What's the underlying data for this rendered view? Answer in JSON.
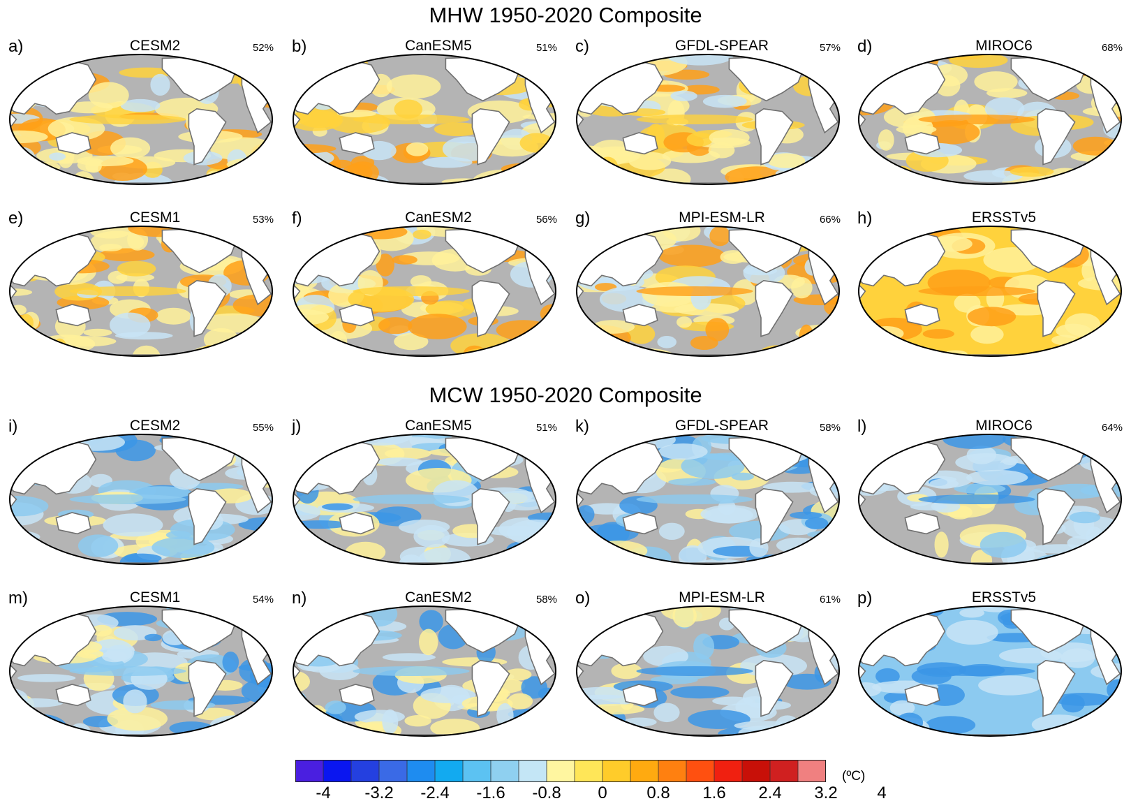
{
  "sections": [
    {
      "title": "MHW 1950-2020 Composite",
      "kind": "mhw"
    },
    {
      "title": "MCW 1950-2020 Composite",
      "kind": "mcw"
    }
  ],
  "panels": [
    {
      "label": "a)",
      "model": "CESM2",
      "pct": "52%",
      "kind": "mhw",
      "strength": 1
    },
    {
      "label": "b)",
      "model": "CanESM5",
      "pct": "51%",
      "kind": "mhw",
      "strength": 1
    },
    {
      "label": "c)",
      "model": "GFDL-SPEAR",
      "pct": "57%",
      "kind": "mhw",
      "strength": 1
    },
    {
      "label": "d)",
      "model": "MIROC6",
      "pct": "68%",
      "kind": "mhw",
      "strength": 1.3
    },
    {
      "label": "e)",
      "model": "CESM1",
      "pct": "53%",
      "kind": "mhw",
      "strength": 1
    },
    {
      "label": "f)",
      "model": "CanESM2",
      "pct": "56%",
      "kind": "mhw",
      "strength": 1
    },
    {
      "label": "g)",
      "model": "MPI-ESM-LR",
      "pct": "66%",
      "kind": "mhw",
      "strength": 1.4
    },
    {
      "label": "h)",
      "model": "ERSSTv5",
      "pct": "",
      "kind": "mhw",
      "strength": 3
    },
    {
      "label": "i)",
      "model": "CESM2",
      "pct": "55%",
      "kind": "mcw",
      "strength": 1
    },
    {
      "label": "j)",
      "model": "CanESM5",
      "pct": "51%",
      "kind": "mcw",
      "strength": 1
    },
    {
      "label": "k)",
      "model": "GFDL-SPEAR",
      "pct": "58%",
      "kind": "mcw",
      "strength": 1
    },
    {
      "label": "l)",
      "model": "MIROC6",
      "pct": "64%",
      "kind": "mcw",
      "strength": 1.1
    },
    {
      "label": "m)",
      "model": "CESM1",
      "pct": "54%",
      "kind": "mcw",
      "strength": 1
    },
    {
      "label": "n)",
      "model": "CanESM2",
      "pct": "58%",
      "kind": "mcw",
      "strength": 1
    },
    {
      "label": "o)",
      "model": "MPI-ESM-LR",
      "pct": "61%",
      "kind": "mcw",
      "strength": 1.2
    },
    {
      "label": "p)",
      "model": "ERSSTv5",
      "pct": "",
      "kind": "mcw",
      "strength": 3
    }
  ],
  "colorbar": {
    "unit": "(ºC)",
    "tick_labels": [
      "-4",
      "-3.2",
      "-2.4",
      "-1.6",
      "-0.8",
      "0",
      "0.8",
      "1.6",
      "2.4",
      "3.2",
      "4"
    ],
    "colors": [
      "#4a1fe0",
      "#0a16f0",
      "#2440e0",
      "#3a6ae6",
      "#1e8cf0",
      "#12aaf0",
      "#5cc2f2",
      "#8fd0f0",
      "#c4e6f6",
      "#fff6a0",
      "#ffe658",
      "#ffcc2a",
      "#ffaa10",
      "#ff8010",
      "#ff5010",
      "#f02010",
      "#c81008",
      "#d02020",
      "#f08080"
    ]
  },
  "map_colors": {
    "land": "#ffffff",
    "insignificant": "#b4b4b4",
    "warm_weak": "#fff19a",
    "warm_mid": "#ffd23c",
    "warm_strong": "#ffa018",
    "warm_extreme": "#f04010",
    "cool_weak": "#c8e4f6",
    "cool_mid": "#8ccaf0",
    "cool_strong": "#3c96e6",
    "cool_extreme": "#1a40d8"
  }
}
